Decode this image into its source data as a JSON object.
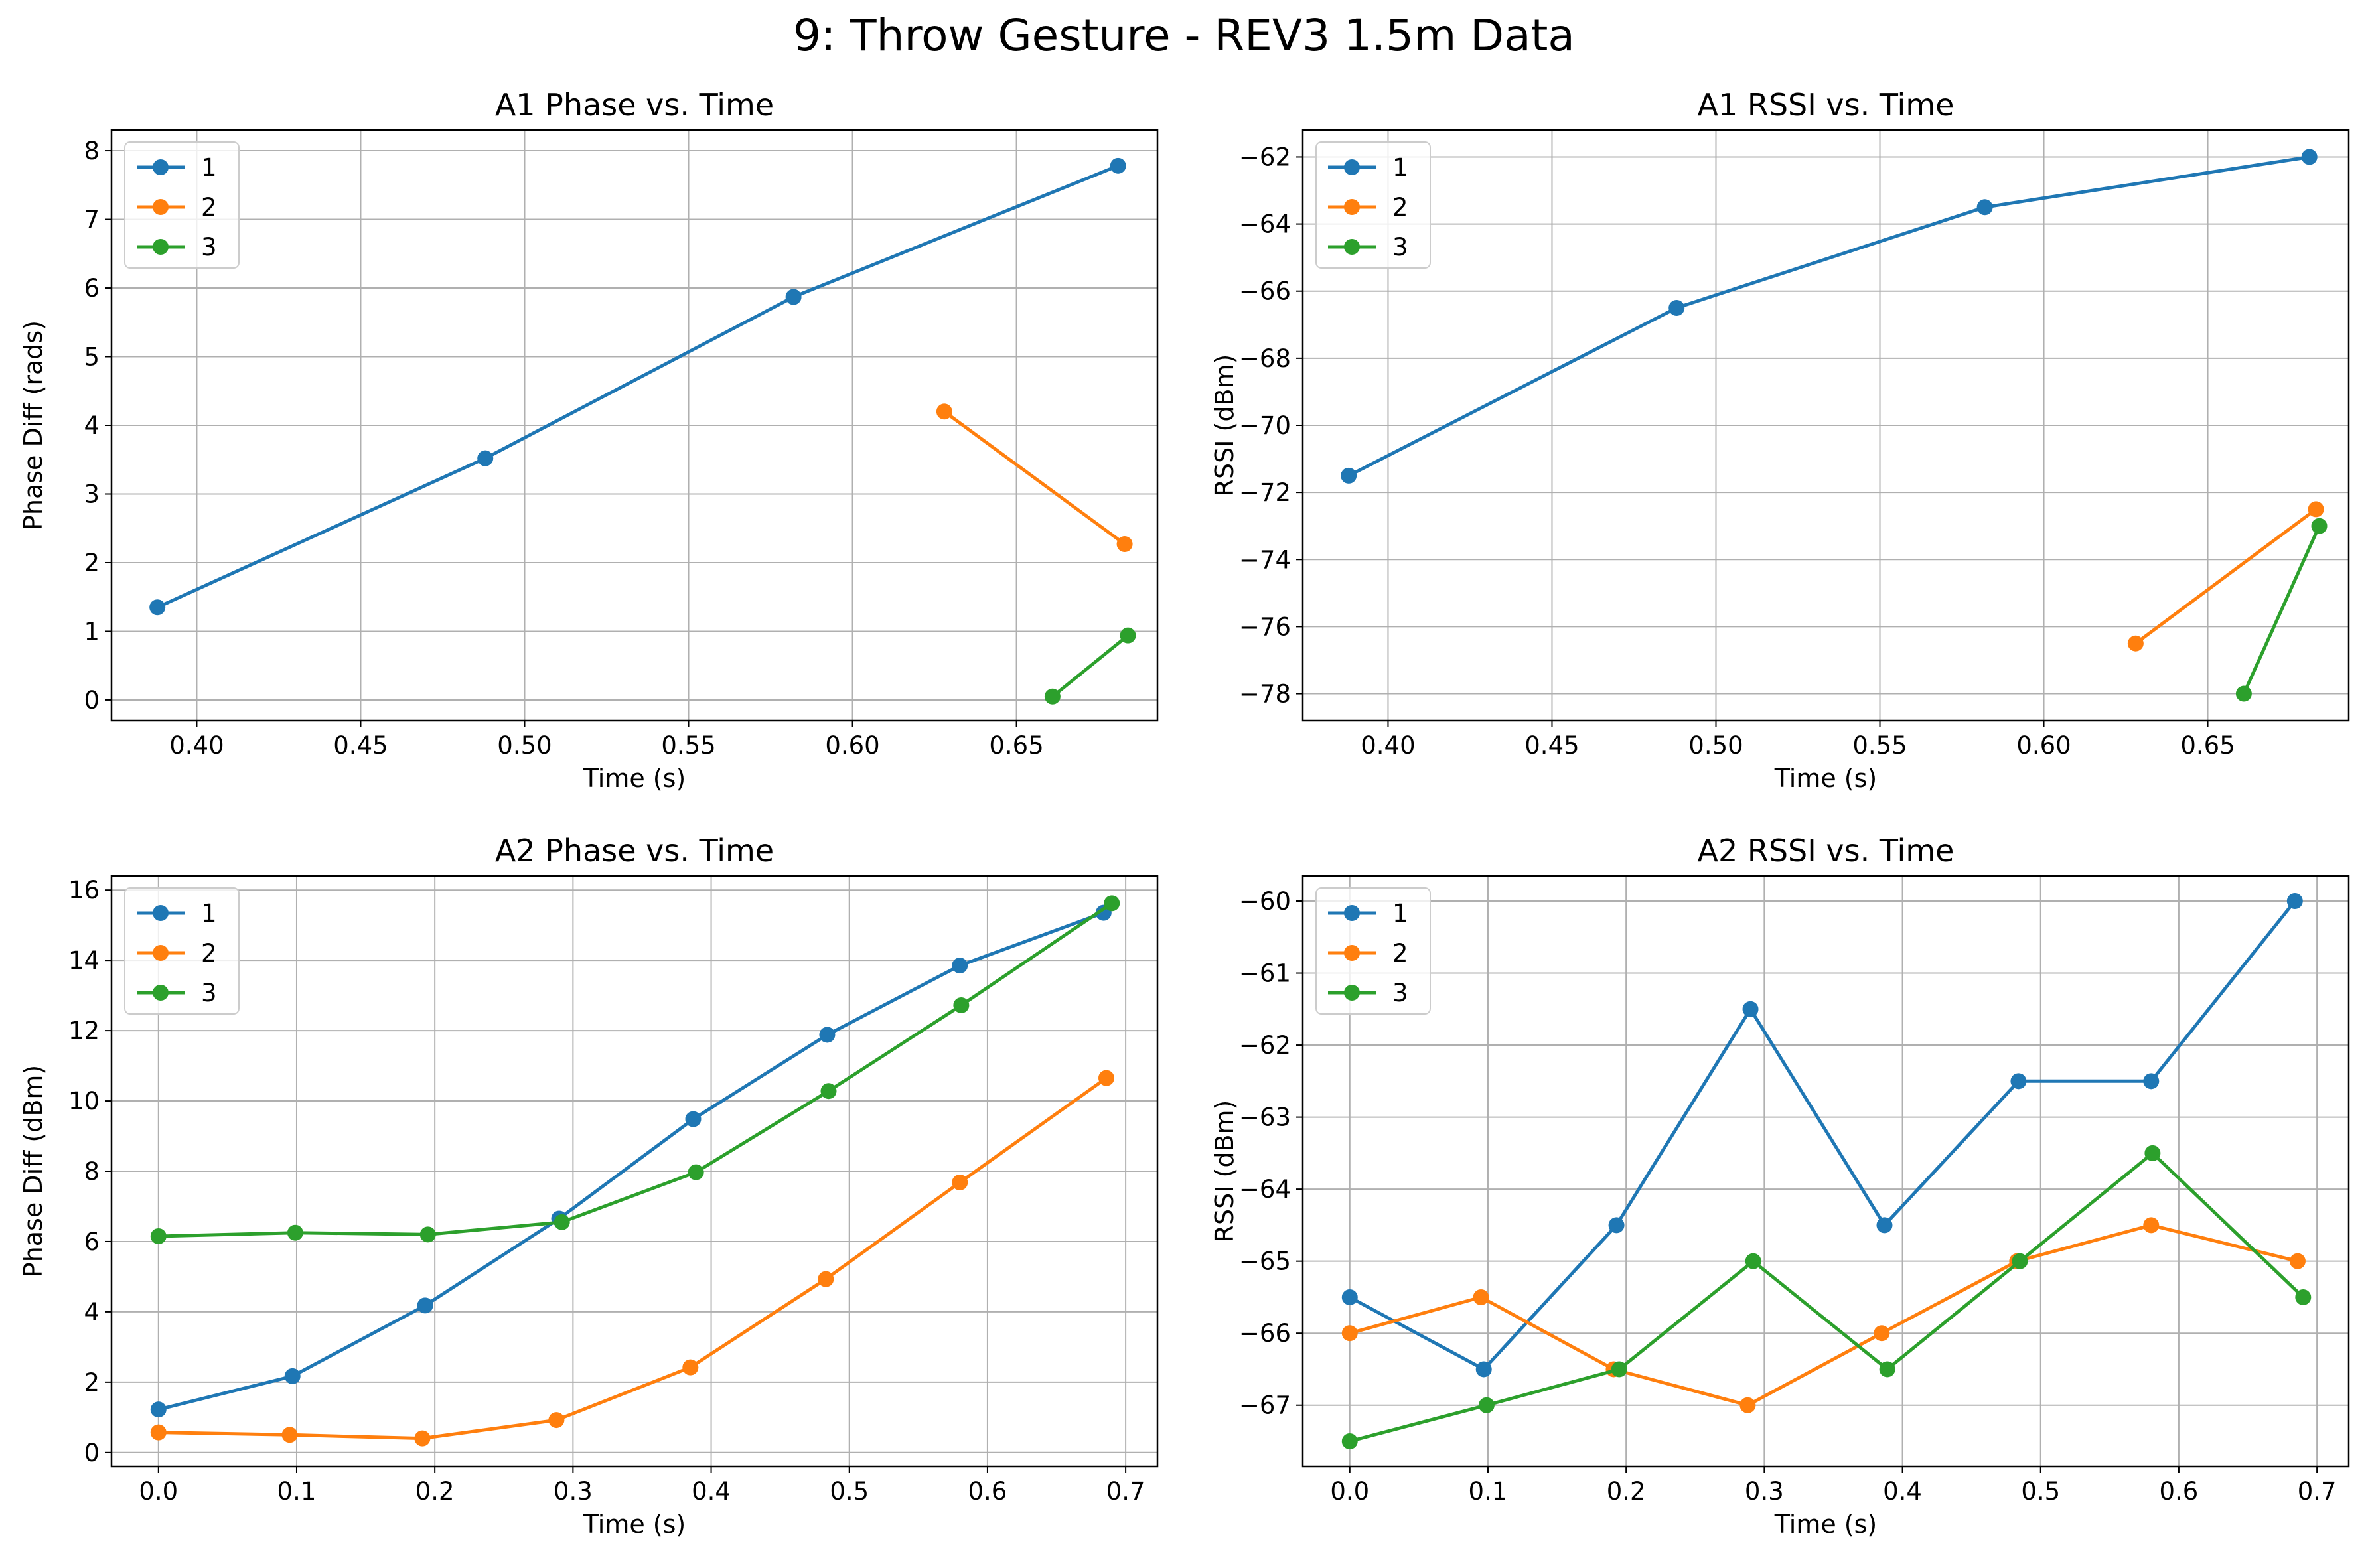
{
  "figure": {
    "title": "9: Throw Gesture - REV3 1.5m Data"
  },
  "colors": {
    "1": "#1f77b4",
    "2": "#ff7f0e",
    "3": "#2ca02c"
  },
  "chart_data": [
    {
      "type": "line",
      "title": "A1 Phase vs. Time",
      "xlabel": "Time (s)",
      "ylabel": "Phase Diff (rads)",
      "xlim": [
        0.374,
        0.693
      ],
      "ylim": [
        -0.3,
        8.3
      ],
      "xticks": [
        0.4,
        0.45,
        0.5,
        0.55,
        0.6,
        0.65
      ],
      "xtick_labels": [
        "0.40",
        "0.45",
        "0.50",
        "0.55",
        "0.60",
        "0.65"
      ],
      "yticks": [
        0,
        1,
        2,
        3,
        4,
        5,
        6,
        7,
        8
      ],
      "ytick_labels": [
        "0",
        "1",
        "2",
        "3",
        "4",
        "5",
        "6",
        "7",
        "8"
      ],
      "grid": true,
      "legend": "upper left",
      "series": [
        {
          "name": "1",
          "x": [
            0.388,
            0.488,
            0.582,
            0.681
          ],
          "y": [
            1.35,
            3.52,
            5.87,
            7.78
          ]
        },
        {
          "name": "2",
          "x": [
            0.628,
            0.683
          ],
          "y": [
            4.2,
            2.27
          ]
        },
        {
          "name": "3",
          "x": [
            0.661,
            0.684
          ],
          "y": [
            0.05,
            0.94
          ]
        }
      ]
    },
    {
      "type": "line",
      "title": "A1 RSSI vs. Time",
      "xlabel": "Time (s)",
      "ylabel": "RSSI (dBm)",
      "xlim": [
        0.374,
        0.693
      ],
      "ylim": [
        -78.8,
        -61.2
      ],
      "xticks": [
        0.4,
        0.45,
        0.5,
        0.55,
        0.6,
        0.65
      ],
      "xtick_labels": [
        "0.40",
        "0.45",
        "0.50",
        "0.55",
        "0.60",
        "0.65"
      ],
      "yticks": [
        -62,
        -64,
        -66,
        -68,
        -70,
        -72,
        -74,
        -76,
        -78
      ],
      "ytick_labels": [
        "−62",
        "−64",
        "−66",
        "−68",
        "−70",
        "−72",
        "−74",
        "−76",
        "−78"
      ],
      "grid": true,
      "legend": "upper left",
      "series": [
        {
          "name": "1",
          "x": [
            0.388,
            0.488,
            0.582,
            0.681
          ],
          "y": [
            -71.5,
            -66.5,
            -63.5,
            -62.0
          ]
        },
        {
          "name": "2",
          "x": [
            0.628,
            0.683
          ],
          "y": [
            -76.5,
            -72.5
          ]
        },
        {
          "name": "3",
          "x": [
            0.661,
            0.684
          ],
          "y": [
            -78.0,
            -73.0
          ]
        }
      ]
    },
    {
      "type": "line",
      "title": "A2 Phase vs. Time",
      "xlabel": "Time (s)",
      "ylabel": "Phase Diff (dBm)",
      "xlim": [
        -0.034,
        0.723
      ],
      "ylim": [
        -0.4,
        16.4
      ],
      "xticks": [
        0.0,
        0.1,
        0.2,
        0.3,
        0.4,
        0.5,
        0.6,
        0.7
      ],
      "xtick_labels": [
        "0.0",
        "0.1",
        "0.2",
        "0.3",
        "0.4",
        "0.5",
        "0.6",
        "0.7"
      ],
      "yticks": [
        0,
        2,
        4,
        6,
        8,
        10,
        12,
        14,
        16
      ],
      "ytick_labels": [
        "0",
        "2",
        "4",
        "6",
        "8",
        "10",
        "12",
        "14",
        "16"
      ],
      "grid": true,
      "legend": "upper left",
      "series": [
        {
          "name": "1",
          "x": [
            0.0,
            0.097,
            0.193,
            0.29,
            0.387,
            0.484,
            0.58,
            0.684
          ],
          "y": [
            1.22,
            2.17,
            4.18,
            6.65,
            9.48,
            11.88,
            13.85,
            15.35
          ]
        },
        {
          "name": "2",
          "x": [
            0.0,
            0.095,
            0.191,
            0.288,
            0.385,
            0.483,
            0.58,
            0.686
          ],
          "y": [
            0.57,
            0.5,
            0.4,
            0.92,
            2.42,
            4.93,
            7.68,
            10.65
          ]
        },
        {
          "name": "3",
          "x": [
            0.0,
            0.099,
            0.195,
            0.292,
            0.389,
            0.485,
            0.581,
            0.69
          ],
          "y": [
            6.15,
            6.25,
            6.2,
            6.55,
            7.97,
            10.28,
            12.72,
            15.62
          ]
        }
      ]
    },
    {
      "type": "line",
      "title": "A2 RSSI vs. Time",
      "xlabel": "Time (s)",
      "ylabel": "RSSI (dBm)",
      "xlim": [
        -0.034,
        0.723
      ],
      "ylim": [
        -67.85,
        -59.65
      ],
      "xticks": [
        0.0,
        0.1,
        0.2,
        0.3,
        0.4,
        0.5,
        0.6,
        0.7
      ],
      "xtick_labels": [
        "0.0",
        "0.1",
        "0.2",
        "0.3",
        "0.4",
        "0.5",
        "0.6",
        "0.7"
      ],
      "yticks": [
        -60,
        -61,
        -62,
        -63,
        -64,
        -65,
        -66,
        -67
      ],
      "ytick_labels": [
        "−60",
        "−61",
        "−62",
        "−63",
        "−64",
        "−65",
        "−66",
        "−67"
      ],
      "grid": true,
      "legend": "upper left",
      "series": [
        {
          "name": "1",
          "x": [
            0.0,
            0.097,
            0.193,
            0.29,
            0.387,
            0.484,
            0.58,
            0.684
          ],
          "y": [
            -65.5,
            -66.5,
            -64.5,
            -61.5,
            -64.5,
            -62.5,
            -62.5,
            -60.0
          ]
        },
        {
          "name": "2",
          "x": [
            0.0,
            0.095,
            0.191,
            0.288,
            0.385,
            0.483,
            0.58,
            0.686
          ],
          "y": [
            -66.0,
            -65.5,
            -66.5,
            -67.0,
            -66.0,
            -65.0,
            -64.5,
            -65.0
          ]
        },
        {
          "name": "3",
          "x": [
            0.0,
            0.099,
            0.195,
            0.292,
            0.389,
            0.485,
            0.581,
            0.69
          ],
          "y": [
            -67.5,
            -67.0,
            -66.5,
            -65.0,
            -66.5,
            -65.0,
            -63.5,
            -65.5
          ]
        }
      ]
    }
  ]
}
